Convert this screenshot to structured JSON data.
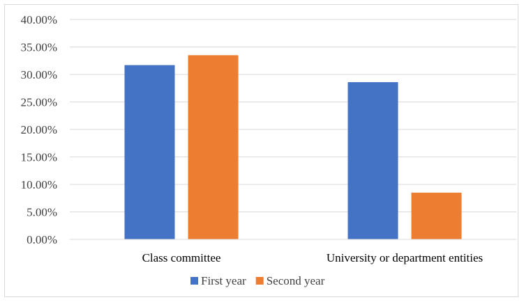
{
  "chart_data": {
    "type": "bar",
    "categories": [
      "Class committee",
      "University or department entities"
    ],
    "series": [
      {
        "name": "First year",
        "values": [
          31.7,
          28.6
        ],
        "color": "#4472c4"
      },
      {
        "name": "Second year",
        "values": [
          33.5,
          8.5
        ],
        "color": "#ed7d31"
      }
    ],
    "ylim": [
      0,
      40
    ],
    "yticks": [
      0,
      5,
      10,
      15,
      20,
      25,
      30,
      35,
      40
    ],
    "ytick_labels": [
      "0.00%",
      "5.00%",
      "10.00%",
      "15.00%",
      "20.00%",
      "25.00%",
      "30.00%",
      "35.00%",
      "40.00%"
    ],
    "grid": true,
    "legend_position": "bottom",
    "title": "",
    "xlabel": "",
    "ylabel": ""
  }
}
